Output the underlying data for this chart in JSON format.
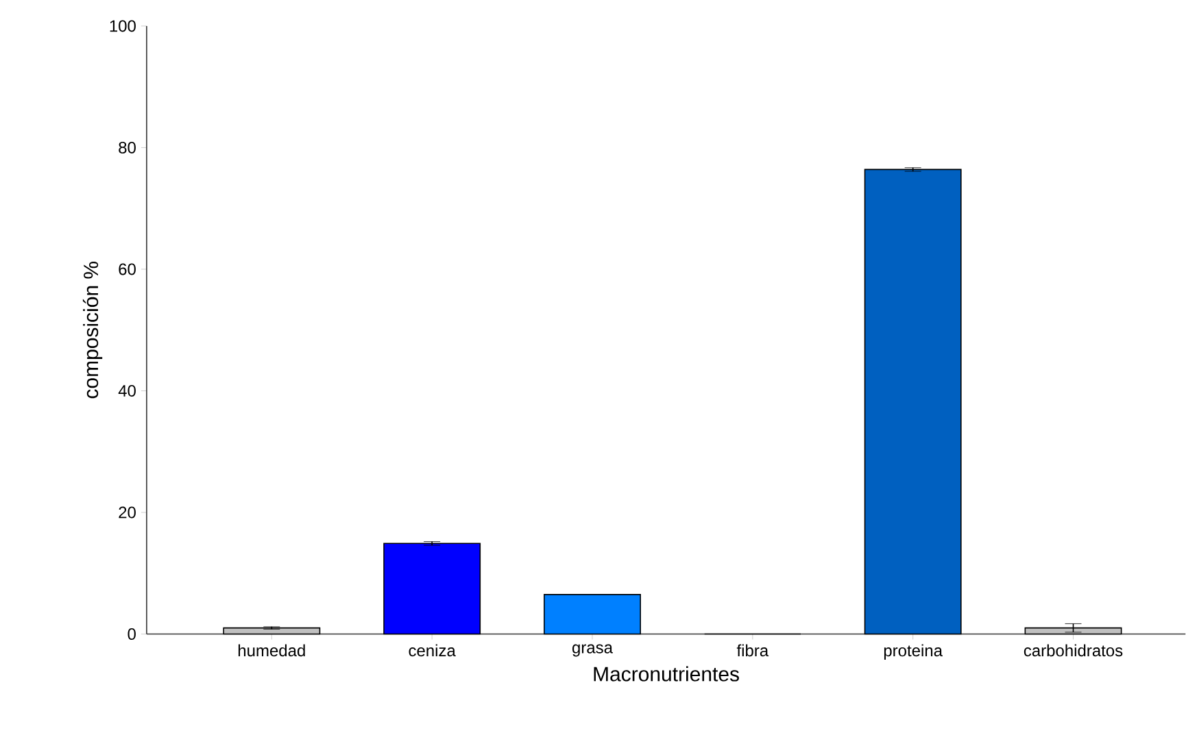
{
  "chart_data": {
    "type": "bar",
    "xlabel": "Macronutrientes",
    "ylabel": "composición %",
    "categories": [
      "humedad",
      "ceniza",
      "grasa",
      "fibra",
      "proteina",
      "carbohidratos"
    ],
    "values": [
      1.0,
      14.9,
      6.5,
      0,
      76.4,
      1.0
    ],
    "errors": [
      0.2,
      0.3,
      null,
      null,
      0.3,
      0.7
    ],
    "colors": [
      "#c0c0c0",
      "#0000ff",
      "#0080ff",
      "#0060c0",
      "#0060c0",
      "#c0c0c0"
    ],
    "ylim": [
      0,
      100
    ],
    "yticks": [
      0,
      20,
      40,
      60,
      80,
      100
    ],
    "grid": false
  }
}
